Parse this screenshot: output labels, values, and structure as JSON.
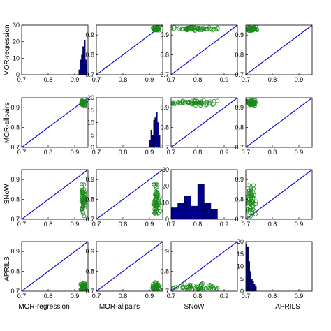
{
  "chart_data": {
    "type": "scatter-matrix",
    "variables": [
      "MOR-regression",
      "MOR-allpairs",
      "SNoW",
      "APRILS"
    ],
    "colors": {
      "diagonal_line": "#1010cc",
      "points": "#1a8a1a",
      "hist_bar": "#00008b"
    },
    "scatter_axis": {
      "lim": [
        0.7,
        0.95
      ],
      "xticks": [
        "0.7",
        "0.8",
        "0.9"
      ],
      "yticks": [
        "0.7",
        "0.8",
        "0.9"
      ]
    },
    "histograms": [
      {
        "variable": "MOR-regression",
        "xlim": [
          0.7,
          0.95
        ],
        "ylim": [
          0,
          30
        ],
        "yticks": [
          "0",
          "10",
          "20",
          "30"
        ],
        "xticks": [
          "0.7",
          "0.8",
          "0.9"
        ],
        "bin_edges": [
          0.915,
          0.92,
          0.925,
          0.93,
          0.935,
          0.94,
          0.945
        ],
        "counts": [
          3,
          9,
          12,
          17,
          21,
          9
        ]
      },
      {
        "variable": "MOR-allpairs",
        "xlim": [
          0.7,
          0.95
        ],
        "ylim": [
          0,
          20
        ],
        "yticks": [
          "0",
          "5",
          "10",
          "15",
          "20"
        ],
        "xticks": [
          "0.7",
          "0.8",
          "0.9"
        ],
        "bin_edges": [
          0.9,
          0.905,
          0.91,
          0.915,
          0.92,
          0.925,
          0.93,
          0.935,
          0.94
        ],
        "counts": [
          3,
          7,
          5,
          11,
          12,
          14,
          10,
          5
        ]
      },
      {
        "variable": "SNoW",
        "xlim": [
          0.7,
          0.95
        ],
        "ylim": [
          0,
          30
        ],
        "yticks": [
          "0",
          "10",
          "20",
          "30"
        ],
        "xticks": [
          "0.7",
          "0.8",
          "0.9"
        ],
        "bin_edges": [
          0.7,
          0.725,
          0.75,
          0.775,
          0.8,
          0.825,
          0.85,
          0.875
        ],
        "counts": [
          7,
          10,
          14,
          8,
          21,
          10,
          6
        ]
      },
      {
        "variable": "APRILS",
        "xlim": [
          0.7,
          0.95
        ],
        "ylim": [
          0,
          20
        ],
        "yticks": [
          "0",
          "5",
          "10",
          "15",
          "20"
        ],
        "xticks": [
          "0.7",
          "0.8",
          "0.9"
        ],
        "bin_edges": [
          0.7,
          0.705,
          0.71,
          0.715,
          0.72,
          0.725,
          0.73,
          0.735,
          0.74
        ],
        "counts": [
          19,
          18,
          12,
          8,
          5,
          4,
          3,
          2
        ]
      }
    ]
  },
  "labels": {
    "row": [
      "MOR-regression",
      "MOR-allpairs",
      "SNoW",
      "APRILS"
    ],
    "col": [
      "MOR-regression",
      "MOR-allpairs",
      "SNoW",
      "APRILS"
    ]
  }
}
